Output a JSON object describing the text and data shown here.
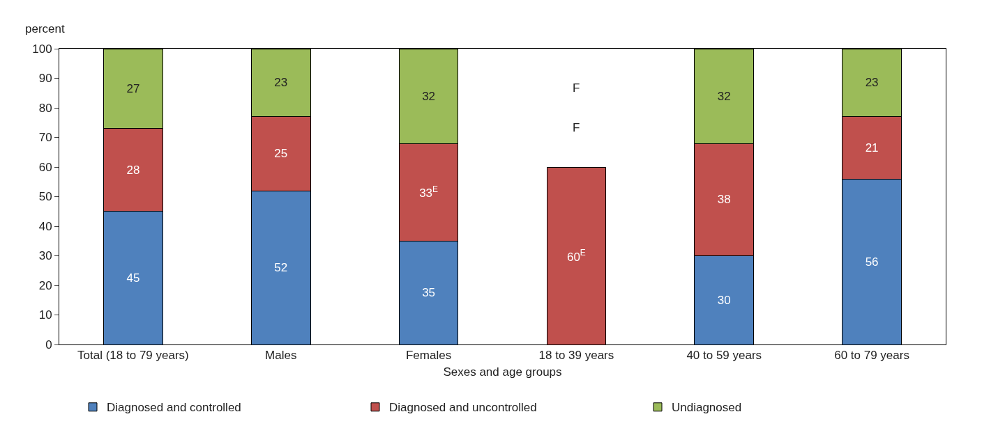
{
  "chart_data": {
    "type": "bar",
    "stacked": true,
    "xlabel": "Sexes and age groups",
    "ylabel": "percent",
    "categories": [
      "Total (18 to 79 years)",
      "Males",
      "Females",
      "18 to 39 years",
      "40 to 59 years",
      "60 to 79 years"
    ],
    "series": [
      {
        "name": "Diagnosed and controlled",
        "color": "#4f81bd",
        "values": [
          45,
          52,
          35,
          null,
          30,
          56
        ],
        "value_labels": [
          "45",
          "52",
          "35",
          "F",
          "30",
          "56"
        ]
      },
      {
        "name": "Diagnosed and uncontrolled",
        "color": "#c0504d",
        "values": [
          28,
          25,
          33,
          60,
          38,
          21
        ],
        "value_labels": [
          "28",
          "25",
          "33$^{E}$",
          "60$^{E}$",
          "38",
          "21"
        ]
      },
      {
        "name": "Undiagnosed",
        "color": "#9bbb59",
        "values": [
          27,
          23,
          32,
          null,
          32,
          23
        ],
        "value_labels": [
          "27",
          "23",
          "32",
          "F",
          "32",
          "23"
        ]
      }
    ],
    "ylim": [
      0,
      100
    ],
    "yticks": [
      0,
      10,
      20,
      30,
      40,
      50,
      60,
      70,
      80,
      90,
      100
    ],
    "grid": false,
    "legend": "bottom"
  }
}
